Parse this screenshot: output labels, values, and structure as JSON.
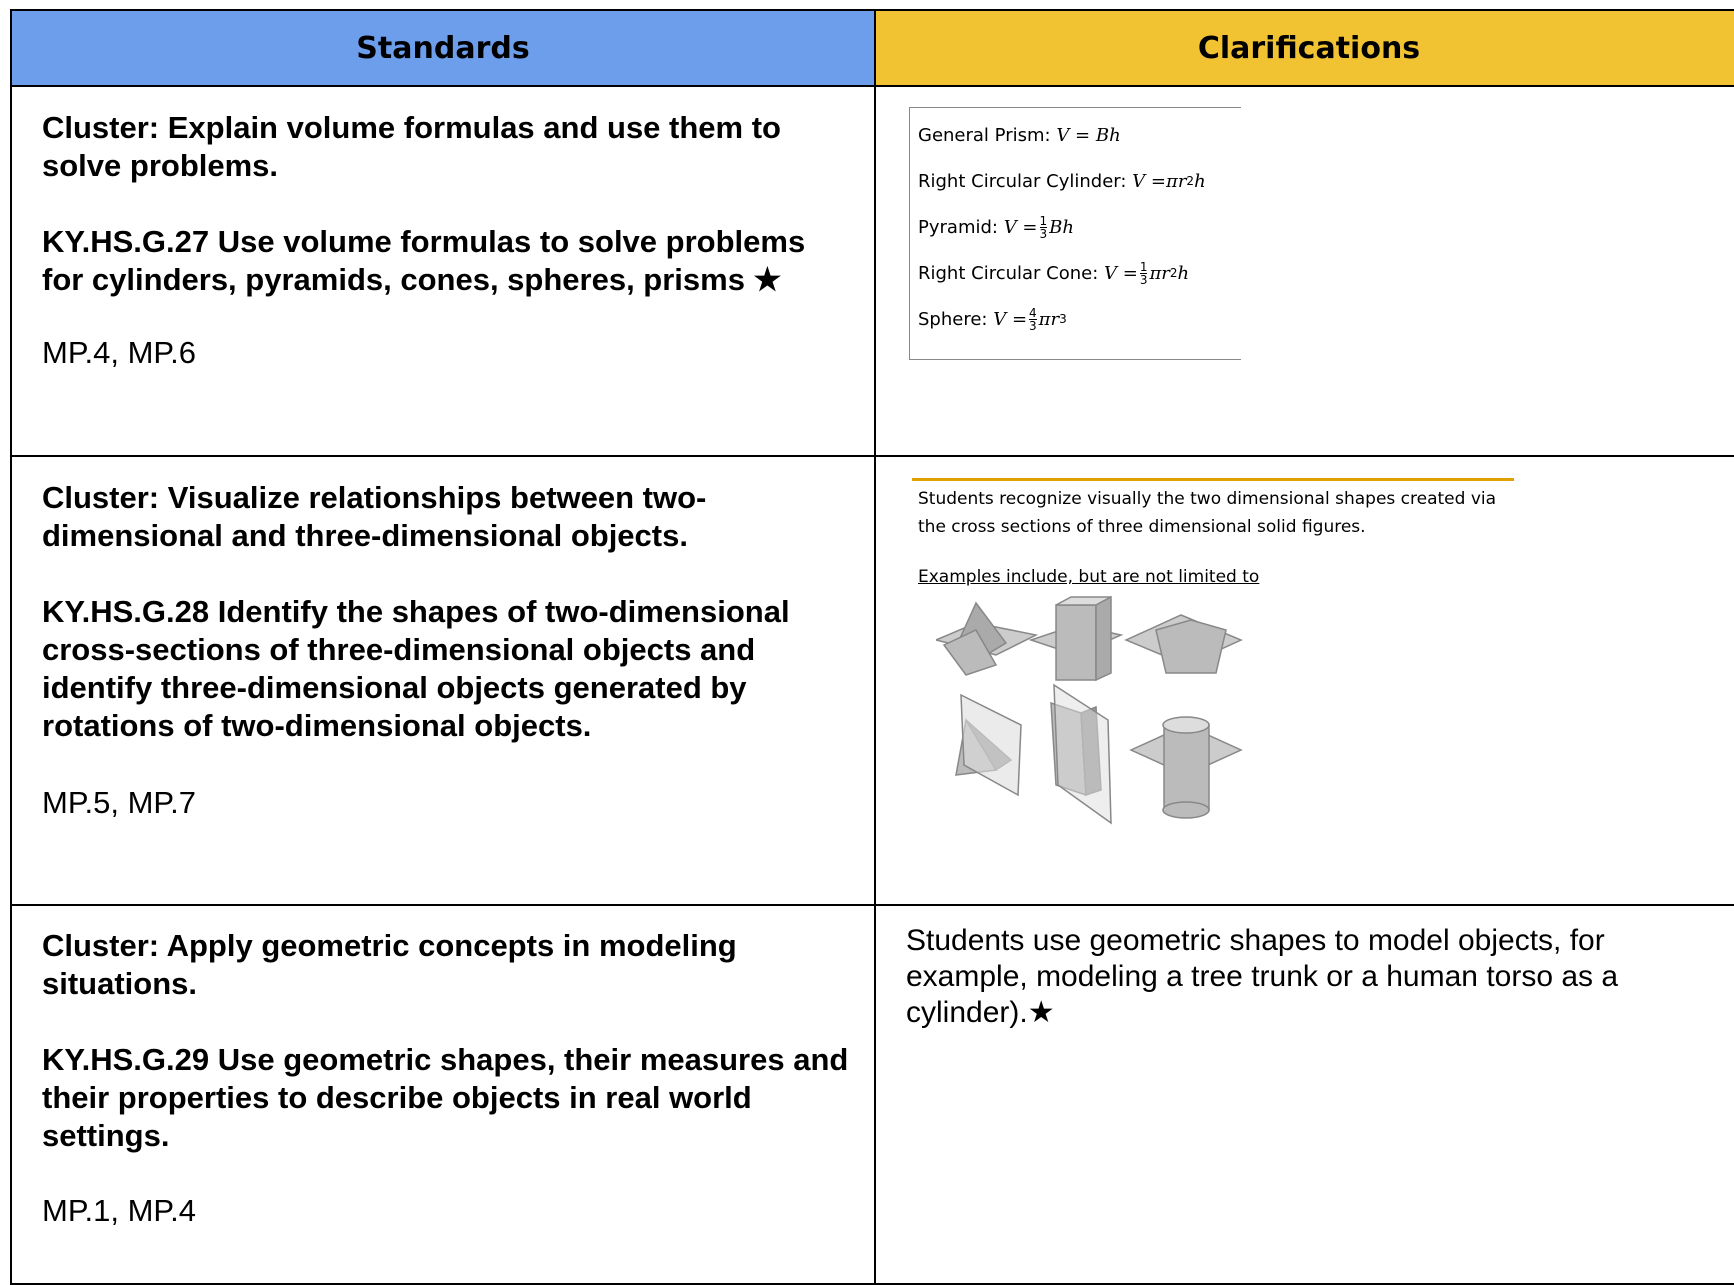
{
  "table": {
    "headers": [
      "Standards",
      "Clarifications"
    ],
    "rows": [
      {
        "cluster": "Cluster: Explain volume formulas and use them to solve problems.",
        "standard": "KY.HS.G.27 Use volume formulas to solve problems for cylinders, pyramids, cones, spheres, prisms ★",
        "practices": "MP.4, MP.6",
        "clarification": {
          "formulas": [
            {
              "name": "General Prism:",
              "lhs": "V = Bh"
            },
            {
              "name": "Right Circular Cylinder:",
              "lhs": "V =",
              "body": "πr",
              "sup": "2",
              "tail": "h"
            },
            {
              "name": "Pyramid:",
              "lhs": "V =",
              "num": "1",
              "den": "3",
              "tail": "Bh"
            },
            {
              "name": "Right Circular Cone:",
              "lhs": "V =",
              "num": "1",
              "den": "3",
              "body": "πr",
              "sup": "2",
              "tail": "h"
            },
            {
              "name": "Sphere:",
              "lhs": "V =",
              "num": "4",
              "den": "3",
              "body": "πr",
              "sup": "3"
            }
          ]
        }
      },
      {
        "cluster": "Cluster: Visualize relationships between two-dimensional and three-dimensional objects.",
        "standard": "KY.HS.G.28 Identify the shapes of two-dimensional cross-sections of three-dimensional objects and identify three-dimensional objects generated by rotations of two-dimensional objects.",
        "practices": "MP.5, MP.7",
        "clarification": {
          "text": "Students recognize visually the two dimensional shapes created via the cross sections of three dimensional solid figures.",
          "examples_heading": "Examples include, but are not limited to"
        }
      },
      {
        "cluster": "Cluster: Apply geometric concepts in modeling situations.",
        "standard": "KY.HS.G.29 Use geometric shapes, their measures and their properties to describe objects in real world settings.",
        "practices": "MP.1, MP.4",
        "clarification": {
          "text": "Students use geometric shapes to model objects, for example, modeling a tree trunk or a human torso as a cylinder).★"
        }
      }
    ]
  }
}
